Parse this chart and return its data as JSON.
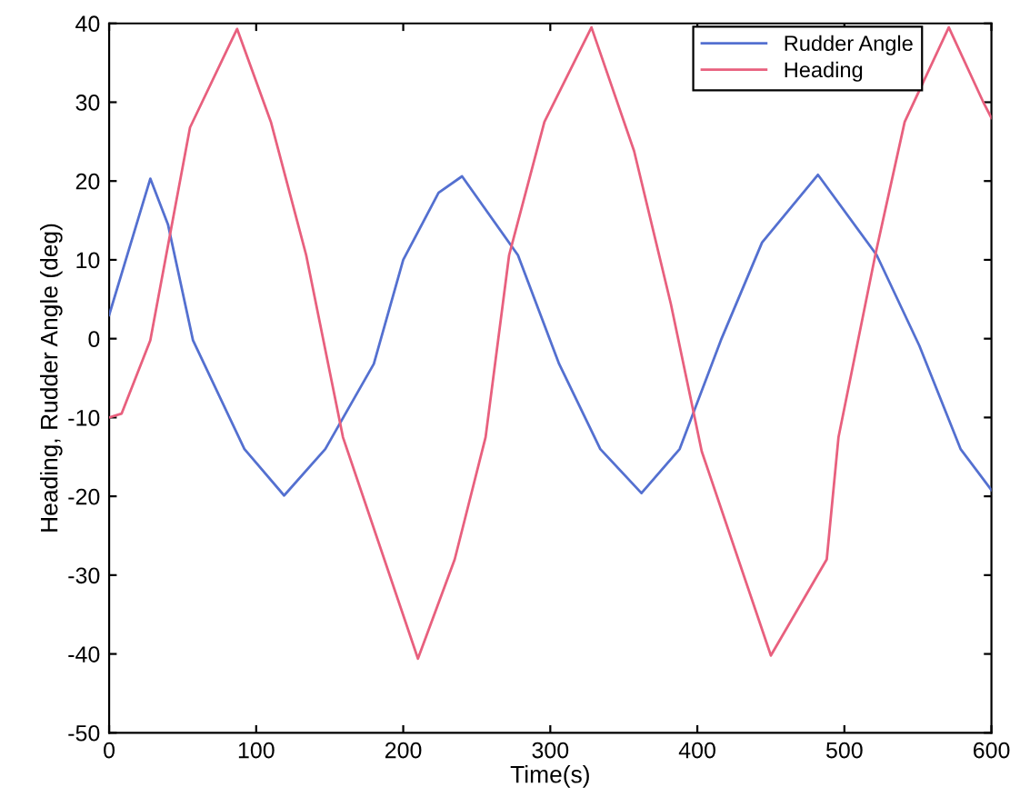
{
  "chart_data": {
    "type": "line",
    "xlabel": "Time(s)",
    "ylabel": "Heading, Rudder Angle (deg)",
    "xlim": [
      0,
      600
    ],
    "xticks": [
      0,
      100,
      200,
      300,
      400,
      500,
      600
    ],
    "ylim": [
      -50,
      40
    ],
    "yticks": [
      -50,
      -40,
      -30,
      -20,
      -10,
      0,
      10,
      20,
      30,
      40
    ],
    "grid": false,
    "legend": "top right",
    "marker": "none",
    "line_style": "solid",
    "series": [
      {
        "name": "Rudder Angle",
        "color": "#5470d0",
        "x": [
          0,
          28,
          40,
          57,
          92,
          119,
          147,
          180,
          200,
          224,
          240,
          278,
          306,
          334,
          362,
          388,
          416,
          444,
          482,
          522,
          551,
          579,
          600
        ],
        "values": [
          3,
          20.3,
          14.5,
          -0.2,
          -14,
          -19.9,
          -14,
          -3.2,
          10,
          18.5,
          20.6,
          10.6,
          -3.2,
          -14,
          -19.6,
          -14,
          -0.2,
          12.2,
          20.8,
          10.6,
          -0.9,
          -14,
          -19.2
        ]
      },
      {
        "name": "Heading",
        "color": "#e8607e",
        "x": [
          0,
          8.5,
          28,
          55,
          87,
          110,
          134,
          159,
          210,
          235,
          256,
          272,
          296,
          328,
          357,
          382,
          403,
          450,
          488,
          496,
          521,
          541,
          571,
          595,
          600
        ],
        "values": [
          -10,
          -9.5,
          -0.2,
          26.8,
          39.3,
          27.5,
          10.6,
          -12.5,
          -40.6,
          -28,
          -12.5,
          10.6,
          27.5,
          39.5,
          23.8,
          4.4,
          -14.3,
          -40.2,
          -28,
          -12.5,
          10.6,
          27.5,
          39.5,
          29.8,
          28
        ]
      }
    ]
  }
}
